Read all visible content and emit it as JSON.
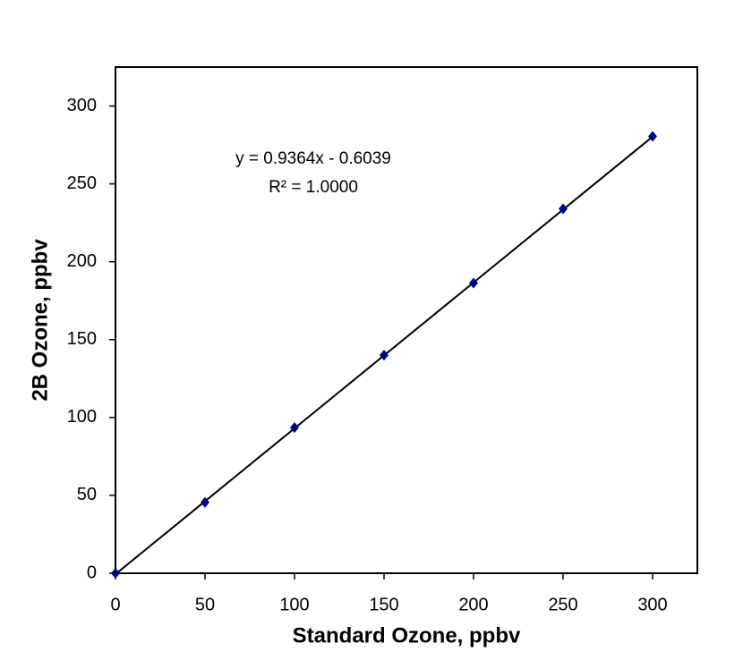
{
  "chart_data": {
    "type": "scatter",
    "x_label": "Standard Ozone, ppbv",
    "y_label": "2B Ozone, ppbv",
    "x": [
      0,
      50,
      100,
      150,
      200,
      250,
      300
    ],
    "values": [
      0,
      45.5,
      93.5,
      140,
      186.3,
      234,
      280.5
    ],
    "color": "#000080",
    "xlim": [
      0,
      325
    ],
    "ylim": [
      0,
      325
    ],
    "xticks": [
      0,
      50,
      100,
      150,
      200,
      250,
      300
    ],
    "yticks": [
      0,
      50,
      100,
      150,
      200,
      250,
      300
    ],
    "trendline": {
      "slope": 0.9364,
      "intercept": -0.6039
    },
    "annotations": [
      "y = 0.9364x - 0.6039",
      "R² = 1.0000"
    ]
  }
}
